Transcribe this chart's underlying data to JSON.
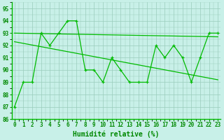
{
  "x": [
    0,
    1,
    2,
    3,
    4,
    5,
    6,
    7,
    8,
    9,
    10,
    11,
    12,
    13,
    14,
    15,
    16,
    17,
    18,
    19,
    20,
    21,
    22,
    23
  ],
  "y_line": [
    87,
    89,
    89,
    93,
    92,
    93,
    94,
    94,
    90,
    90,
    89,
    91,
    90,
    89,
    89,
    89,
    92,
    91,
    92,
    91,
    89,
    91,
    93,
    93
  ],
  "trend1_x0": 0,
  "trend1_x1": 23,
  "trend1_y0": 93.0,
  "trend1_y1": 92.7,
  "trend2_x0": 0,
  "trend2_x1": 23,
  "trend2_y0": 92.3,
  "trend2_y1": 89.2,
  "xlabel": "Humidité relative (%)",
  "ylim_min": 86,
  "ylim_max": 95.5,
  "xlim_min": -0.3,
  "xlim_max": 23.3,
  "yticks": [
    86,
    87,
    88,
    89,
    90,
    91,
    92,
    93,
    94,
    95
  ],
  "xticks": [
    0,
    1,
    2,
    3,
    4,
    5,
    6,
    7,
    8,
    9,
    10,
    11,
    12,
    13,
    14,
    15,
    16,
    17,
    18,
    19,
    20,
    21,
    22,
    23
  ],
  "line_color": "#00bb00",
  "bg_color": "#c8f0e8",
  "grid_color": "#99ccbb",
  "text_color": "#008800",
  "tick_fontsize": 5.5,
  "xlabel_fontsize": 7.0
}
